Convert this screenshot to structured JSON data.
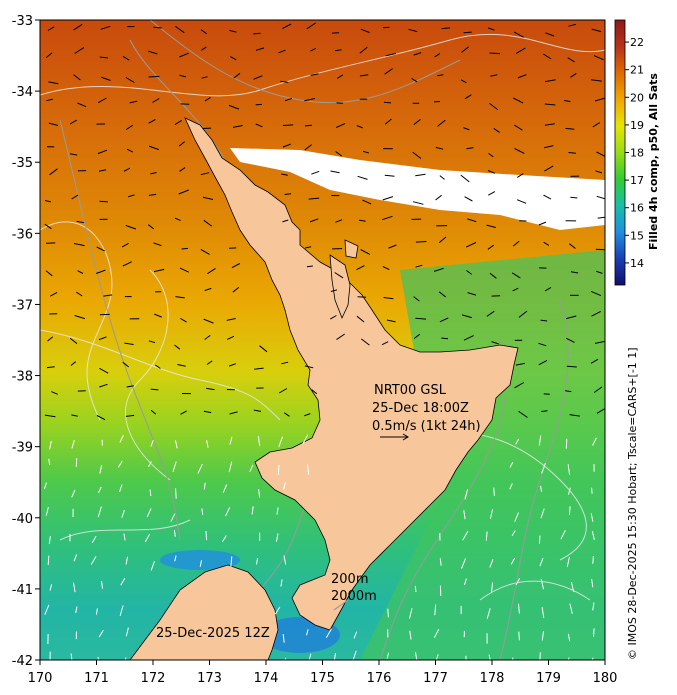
{
  "map": {
    "region": "New Zealand North Island",
    "x_ticks": [
      "170",
      "171",
      "172",
      "173",
      "174",
      "175",
      "176",
      "177",
      "178",
      "179",
      "180"
    ],
    "y_ticks": [
      "-33",
      "-34",
      "-35",
      "-36",
      "-37",
      "-38",
      "-39",
      "-40",
      "-41",
      "-42"
    ],
    "lon_range": [
      170,
      180
    ],
    "lat_range": [
      -42,
      -33
    ],
    "colors": {
      "land": "#f7c79b",
      "cloud": "#ffffff",
      "contour": "#dddddd",
      "isobath": "#9a9a9a",
      "arrow_black": "#000000",
      "arrow_white": "#ffffff"
    }
  },
  "annotations": {
    "product_name": "NRT00 GSL",
    "product_time": "25-Dec 18:00Z",
    "scale_label": "0.5m/s (1kt 24h)",
    "isobath_200": "200m",
    "isobath_2000": "2000m",
    "composite_date": "25-Dec-2025 12Z"
  },
  "colorbar": {
    "ticks": [
      "14",
      "15",
      "16",
      "17",
      "18",
      "19",
      "20",
      "21",
      "22"
    ],
    "range": [
      13.2,
      22.8
    ],
    "label": "Filled 4h comp, p50, All Sats",
    "colors": [
      "#10106b",
      "#1a3fb8",
      "#1f8fe0",
      "#18c0a8",
      "#33cc33",
      "#99dd11",
      "#e6e600",
      "#f0a800",
      "#e06a00",
      "#b8321a",
      "#8c1a1a"
    ]
  },
  "credit": "© IMOS 28-Dec-2025 15:30 Hobart; Tscale=CARS+[-1 1]"
}
